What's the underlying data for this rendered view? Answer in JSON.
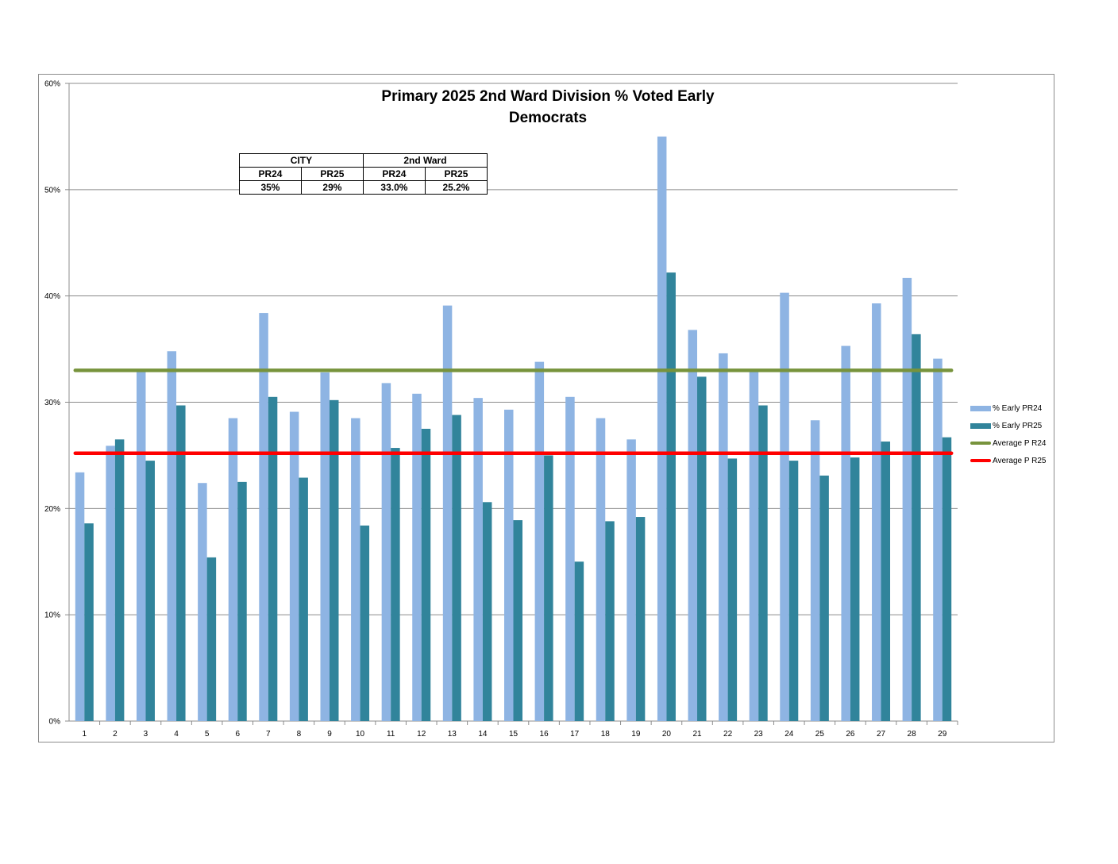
{
  "chart_data": {
    "type": "bar",
    "title": "Primary 2025 2nd Ward Division % Voted Early",
    "subtitle": "Democrats",
    "categories": [
      "1",
      "2",
      "3",
      "4",
      "5",
      "6",
      "7",
      "8",
      "9",
      "10",
      "11",
      "12",
      "13",
      "14",
      "15",
      "16",
      "17",
      "18",
      "19",
      "20",
      "21",
      "22",
      "23",
      "24",
      "25",
      "26",
      "27",
      "28",
      "29"
    ],
    "series": [
      {
        "name": "% Early PR24",
        "color": "#8eb4e3",
        "values": [
          23.4,
          25.9,
          32.9,
          34.8,
          22.4,
          28.5,
          38.4,
          29.1,
          32.8,
          28.5,
          31.8,
          30.8,
          39.1,
          30.4,
          29.3,
          33.8,
          30.5,
          28.5,
          26.5,
          55.0,
          36.8,
          34.6,
          33.0,
          40.3,
          28.3,
          35.3,
          39.3,
          41.7,
          34.1
        ]
      },
      {
        "name": "% Early PR25",
        "color": "#31849b",
        "values": [
          18.6,
          26.5,
          24.5,
          29.7,
          15.4,
          22.5,
          30.5,
          22.9,
          30.2,
          18.4,
          25.7,
          27.5,
          28.8,
          20.6,
          18.9,
          25.0,
          15.0,
          18.8,
          19.2,
          42.2,
          32.4,
          24.7,
          29.7,
          24.5,
          23.1,
          24.8,
          26.3,
          36.4,
          26.7
        ]
      }
    ],
    "reference_lines": [
      {
        "name": "Average P R24",
        "value": 33.0,
        "color": "#77933c"
      },
      {
        "name": "Average P R25",
        "value": 25.2,
        "color": "#ff0000"
      }
    ],
    "ylim": [
      0,
      60
    ],
    "yticks": [
      "0%",
      "10%",
      "20%",
      "30%",
      "40%",
      "50%",
      "60%"
    ],
    "grid": true,
    "legend_position": "right",
    "xlabel": "",
    "ylabel": ""
  },
  "legend": {
    "items": [
      {
        "label": "% Early PR24",
        "kind": "bar",
        "color": "#8eb4e3"
      },
      {
        "label": "% Early PR25",
        "kind": "bar",
        "color": "#31849b"
      },
      {
        "label": "Average P R24",
        "kind": "line",
        "color": "#77933c"
      },
      {
        "label": "Average P R25",
        "kind": "line",
        "color": "#ff0000"
      }
    ]
  },
  "summary_table": {
    "city_header": "CITY",
    "ward_header": "2nd Ward",
    "city_pr24_label": "PR24",
    "city_pr25_label": "PR25",
    "ward_pr24_label": "PR24",
    "ward_pr25_label": "PR25",
    "city_pr24_value": "35%",
    "city_pr25_value": "29%",
    "ward_pr24_value": "33.0%",
    "ward_pr25_value": "25.2%"
  }
}
